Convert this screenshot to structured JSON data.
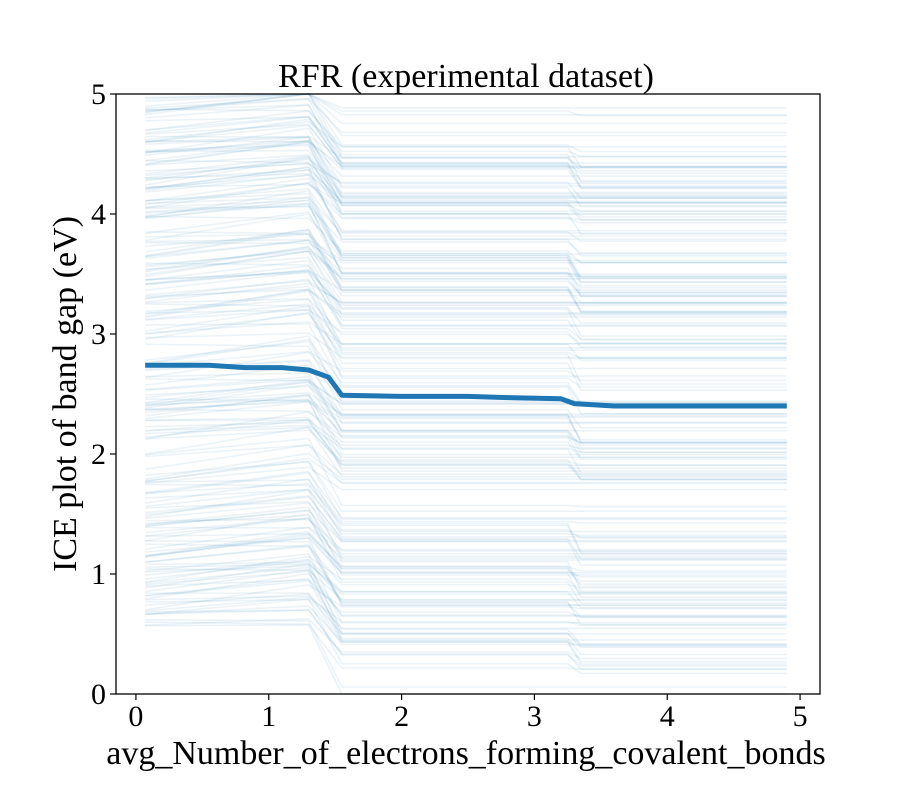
{
  "chart_data": {
    "type": "line",
    "title": "RFR (experimental dataset)",
    "xlabel": "avg_Number_of_electrons_forming_covalent_bonds",
    "ylabel": "ICE plot of band gap (eV)",
    "xlim": [
      -0.15,
      5.15
    ],
    "ylim": [
      0,
      5
    ],
    "x_ticks": [
      "0",
      "1",
      "2",
      "3",
      "4",
      "5"
    ],
    "y_ticks": [
      "0",
      "1",
      "2",
      "3",
      "4",
      "5"
    ],
    "grid": false,
    "legend": "none",
    "colors": {
      "ice_lines": "#1f77b4",
      "average_line": "#1f77b4",
      "frame": "#000000"
    },
    "series": [
      {
        "role": "average",
        "x": [
          0.07,
          0.55,
          0.82,
          1.1,
          1.3,
          1.45,
          1.55,
          2.0,
          2.5,
          2.8,
          3.2,
          3.3,
          3.6,
          4.0,
          4.9
        ],
        "values": [
          2.74,
          2.74,
          2.72,
          2.72,
          2.7,
          2.64,
          2.49,
          2.48,
          2.48,
          2.47,
          2.46,
          2.42,
          2.4,
          2.4,
          2.4
        ]
      }
    ],
    "ice_curves": {
      "count": 220,
      "x": [
        0.07,
        1.3,
        1.55,
        3.25,
        3.35,
        4.9
      ],
      "y_start_range": [
        0.55,
        4.98
      ],
      "note_for_rendering": ""
    }
  }
}
